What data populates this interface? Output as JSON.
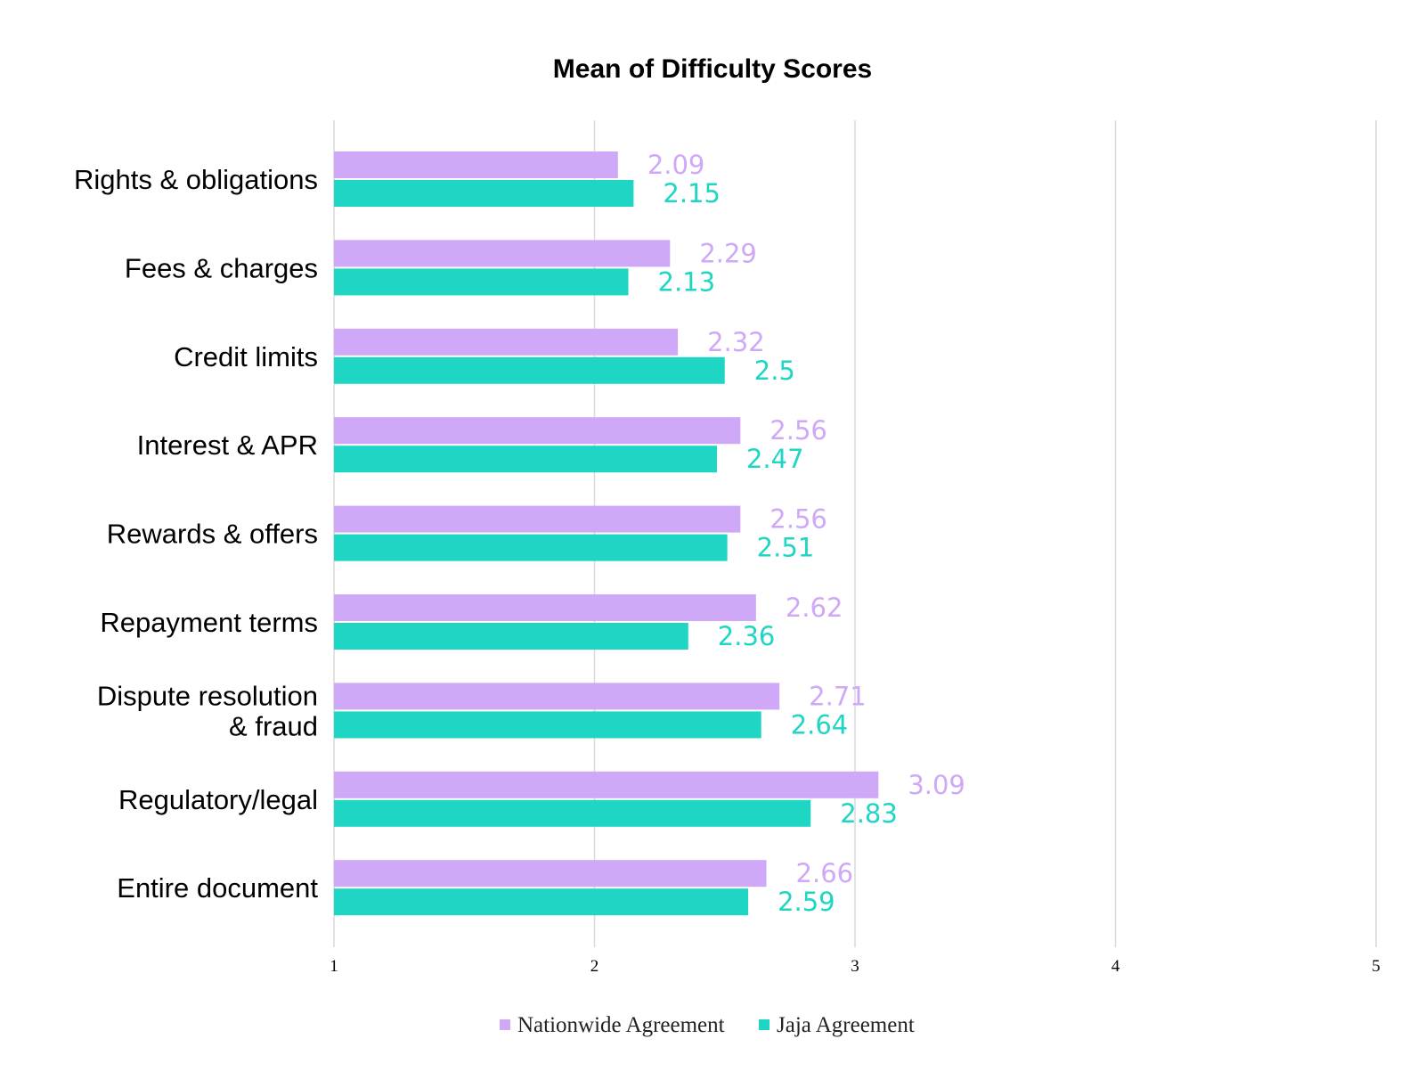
{
  "chart_data": {
    "type": "bar",
    "orientation": "horizontal",
    "title": "Mean of Difficulty Scores",
    "categories": [
      "Rights & obligations",
      "Fees & charges",
      "Credit limits",
      "Interest & APR",
      "Rewards & offers",
      "Repayment terms",
      "Dispute resolution\n& fraud",
      "Regulatory/legal",
      "Entire document"
    ],
    "series": [
      {
        "name": "Nationwide Agreement",
        "color": "#cfa8f7",
        "values": [
          2.09,
          2.29,
          2.32,
          2.56,
          2.56,
          2.62,
          2.71,
          3.09,
          2.66
        ],
        "labels": [
          "2.09",
          "2.29",
          "2.32",
          "2.56",
          "2.56",
          "2.62",
          "2.71",
          "3.09",
          "2.66"
        ]
      },
      {
        "name": "Jaja Agreement",
        "color": "#1ed6c3",
        "values": [
          2.15,
          2.13,
          2.5,
          2.47,
          2.51,
          2.36,
          2.64,
          2.83,
          2.59
        ],
        "labels": [
          "2.15",
          "2.13",
          "2.5",
          "2.47",
          "2.51",
          "2.36",
          "2.64",
          "2.83",
          "2.59"
        ]
      }
    ],
    "xlim": [
      1,
      5
    ],
    "xticks": [
      "1",
      "2",
      "3",
      "4",
      "5"
    ],
    "xlabel": "",
    "ylabel": "",
    "grid": true,
    "legend_position": "bottom"
  }
}
